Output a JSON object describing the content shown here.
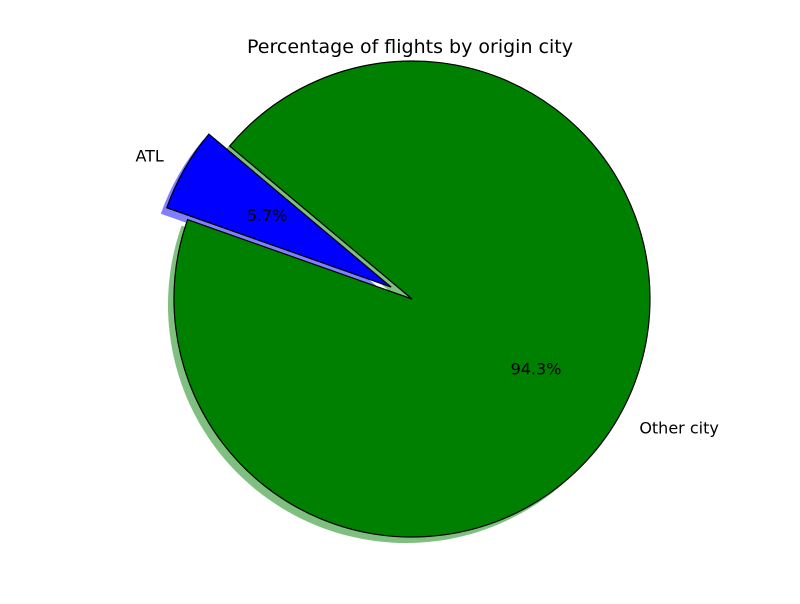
{
  "chart_data": {
    "type": "pie",
    "title": "Percentage of flights by origin city",
    "categories": [
      "ATL",
      "Other city"
    ],
    "values": [
      5.7,
      94.3
    ],
    "labels": [
      "ATL",
      "Other city"
    ],
    "percent_labels": [
      "5.7%",
      "94.3%"
    ],
    "colors": [
      "#0000ff",
      "#008000"
    ],
    "exploded": [
      true,
      false
    ],
    "shadow": true,
    "start_angle_deg": 140,
    "direction": "counterclockwise",
    "legend": "none"
  }
}
